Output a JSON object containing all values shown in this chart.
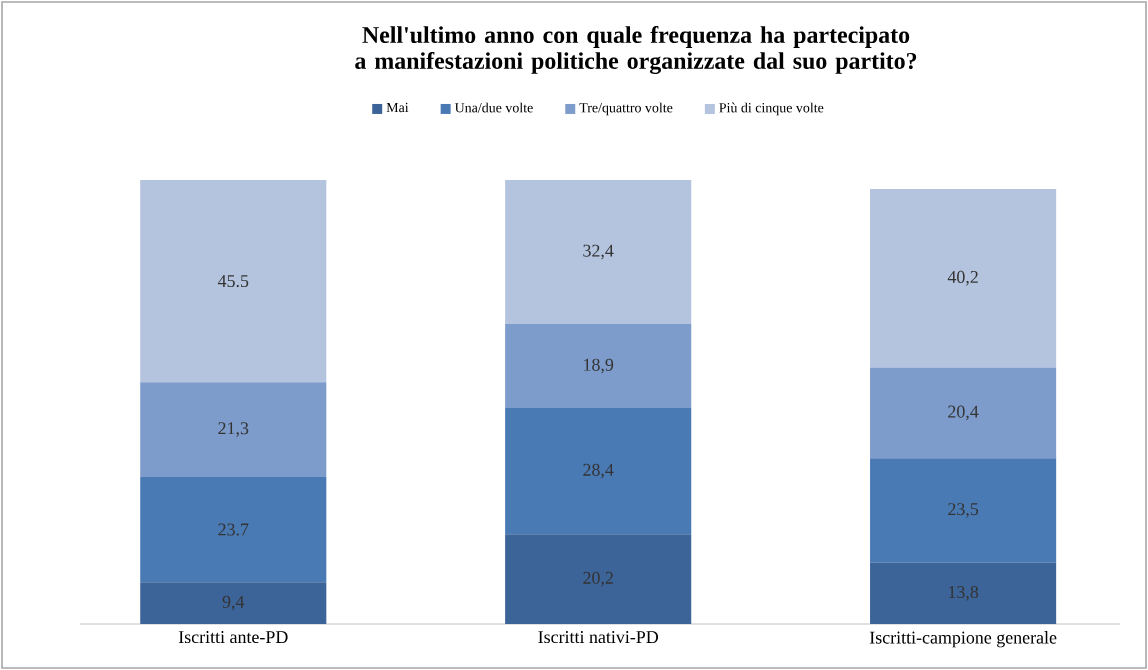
{
  "chart_data": {
    "type": "bar",
    "stacked": true,
    "legend": "top",
    "title": "Nell'ultimo anno con quale frequenza ha partecipato a manifestazioni politiche organizzate dal suo partito?",
    "categories": [
      "Iscritti ante-PD",
      "Iscritti nativi-PD",
      "Iscritti-campione generale"
    ],
    "series": [
      {
        "name": "Mai",
        "color": "#3d6499",
        "values": [
          9.4,
          20.2,
          13.8
        ],
        "value_labels": [
          "9,4",
          "20,2",
          "13,8"
        ]
      },
      {
        "name": "Una/due volte",
        "color": "#4a7ab4",
        "values": [
          23.7,
          28.4,
          23.5
        ],
        "value_labels": [
          "23.7",
          "28,4",
          "23,5"
        ]
      },
      {
        "name": "Tre/quattro volte",
        "color": "#7e9ccb",
        "values": [
          21.3,
          18.9,
          20.4
        ],
        "value_labels": [
          "21,3",
          "18,9",
          "20,4"
        ]
      },
      {
        "name": "Più di cinque volte",
        "color": "#b4c3de",
        "values": [
          45.5,
          32.4,
          40.2
        ],
        "value_labels": [
          "45.5",
          "32,4",
          "40,2"
        ]
      }
    ]
  }
}
